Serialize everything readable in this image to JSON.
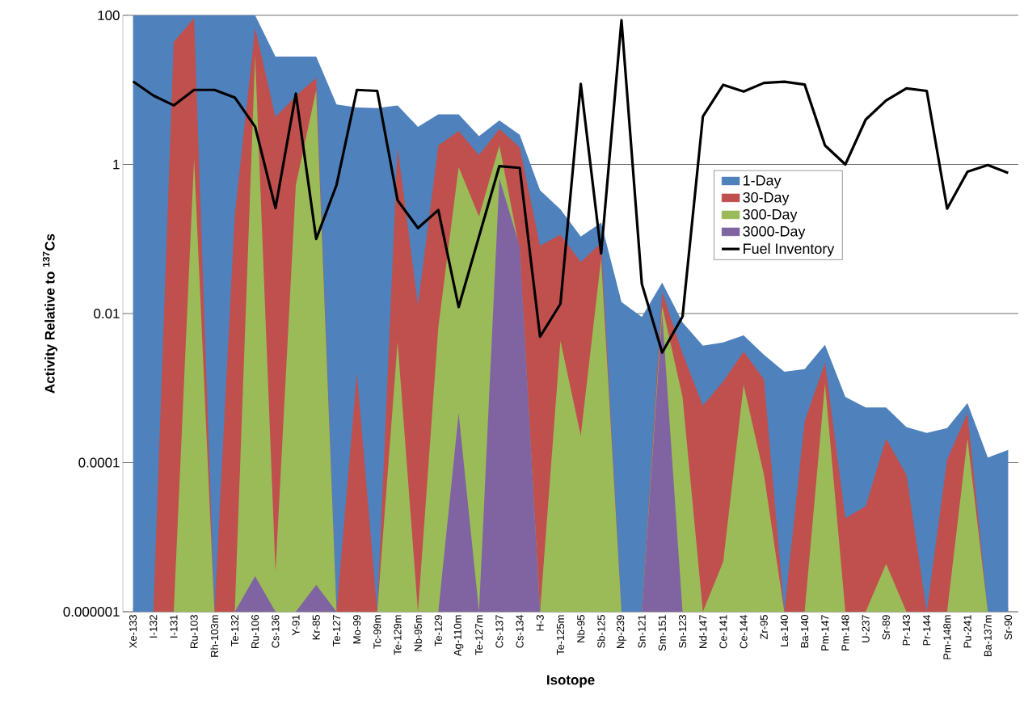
{
  "chart_data": {
    "type": "area",
    "xlabel": "Isotope",
    "ylabel": "Activity Relative to $^{137}$Cs",
    "log": "y",
    "grid": "y",
    "legend": "right",
    "categories": [
      "Xe-133",
      "I-132",
      "I-131",
      "Ru-103",
      "Rh-103m",
      "Te-132",
      "Ru-106",
      "Cs-136",
      "Y-91",
      "Kr-85",
      "Te-127",
      "Mo-99",
      "Tc-99m",
      "Te-129m",
      "Nb-95m",
      "Te-129",
      "Ag-110m",
      "Te-127m",
      "Cs-137",
      "Cs-134",
      "H-3",
      "Te-125m",
      "Nb-95",
      "Sb-125",
      "Np-239",
      "Sn-121",
      "Sm-151",
      "Sn-123",
      "Nd-147",
      "Ce-141",
      "Ce-144",
      "Zr-95",
      "La-140",
      "Ba-140",
      "Pm-147",
      "Pm-148",
      "U-237",
      "Sr-89",
      "Pr-143",
      "Pr-144",
      "Pm-148m",
      "Pu-241",
      "Ba-137m",
      "Sr-90"
    ],
    "ylim": [
      1e-06,
      100
    ],
    "yticks": [
      {
        "value": 1e-06,
        "label": "0.000001"
      },
      {
        "value": 0.0001,
        "label": "0.0001"
      },
      {
        "value": 0.01,
        "label": "0.01"
      },
      {
        "value": 1,
        "label": "1"
      },
      {
        "value": 100,
        "label": "100"
      }
    ],
    "series": [
      {
        "name": "1-Day",
        "color": "#4f81bd",
        "values": [
          100,
          100,
          100,
          100,
          100,
          100,
          100,
          28,
          28,
          28,
          6.4,
          5.8,
          5.7,
          6.2,
          3.2,
          4.7,
          4.7,
          2.4,
          3.9,
          2.5,
          0.45,
          0.25,
          0.108,
          0.166,
          0.0143,
          0.009,
          0.026,
          0.0076,
          0.0037,
          0.0041,
          0.0051,
          0.0028,
          0.00166,
          0.0018,
          0.0038,
          0.00076,
          0.00055,
          0.00055,
          0.0003,
          0.00025,
          0.00029,
          0.00063,
          0.000117,
          0.000148
        ]
      },
      {
        "name": "30-Day",
        "color": "#c0504d",
        "values": [
          1e-06,
          1e-06,
          44,
          92,
          1e-06,
          0.21,
          68,
          4.3,
          8.3,
          14.5,
          1e-06,
          0.0016,
          1e-06,
          1.7,
          0.013,
          1.8,
          2.8,
          1.33,
          3.0,
          1.7,
          0.081,
          0.115,
          0.049,
          0.089,
          1e-06,
          1e-06,
          0.0195,
          0.0029,
          0.00058,
          0.00123,
          0.0031,
          0.00131,
          1e-06,
          0.00036,
          0.0022,
          1.8e-05,
          2.6e-05,
          0.00021,
          6.9e-05,
          1e-06,
          0.00011,
          0.00046,
          1e-06,
          1e-06
        ]
      },
      {
        "name": "300-Day",
        "color": "#9bbb59",
        "values": [
          1e-06,
          1e-06,
          1e-06,
          1.2,
          1e-06,
          1e-06,
          29,
          3.4e-06,
          0.53,
          10,
          1e-06,
          1e-06,
          1e-06,
          0.0042,
          1e-06,
          0.0065,
          0.92,
          0.2,
          1.8,
          0.071,
          1e-06,
          0.0043,
          0.00023,
          0.055,
          1e-06,
          1e-06,
          0.0126,
          0.00076,
          1e-06,
          4.7e-06,
          0.0011,
          6.9e-05,
          1e-06,
          1e-06,
          0.00115,
          1e-06,
          1e-06,
          4.4e-06,
          1e-06,
          1e-06,
          1e-06,
          0.00021,
          1e-06,
          1e-06
        ]
      },
      {
        "name": "3000-Day",
        "color": "#8064a2",
        "values": [
          1e-06,
          1e-06,
          1e-06,
          1e-06,
          1e-06,
          1e-06,
          3e-06,
          1e-06,
          1e-06,
          2.3e-06,
          1e-06,
          1e-06,
          1e-06,
          1e-06,
          1e-06,
          1e-06,
          0.00046,
          1e-06,
          0.65,
          0.08,
          1e-06,
          1e-06,
          1e-06,
          1e-06,
          1e-06,
          1e-06,
          0.01,
          1e-06,
          1e-06,
          1e-06,
          1e-06,
          1e-06,
          1e-06,
          1e-06,
          1e-06,
          1e-06,
          1e-06,
          1e-06,
          1e-06,
          1e-06,
          1e-06,
          1e-06,
          1e-06,
          1e-06
        ]
      },
      {
        "name": "Fuel Inventory",
        "type": "line",
        "color": "#000000",
        "values": [
          13,
          8.4,
          6.2,
          10,
          10,
          7.9,
          3.2,
          0.26,
          8.9,
          0.1,
          0.53,
          10,
          9.7,
          0.33,
          0.14,
          0.245,
          0.0122,
          0.108,
          0.95,
          0.9,
          0.0049,
          0.0135,
          12,
          0.064,
          86,
          0.025,
          0.003,
          0.0091,
          4.4,
          11.7,
          9.5,
          12.4,
          12.9,
          11.8,
          1.8,
          1.0,
          4.0,
          7.2,
          10.5,
          9.7,
          0.255,
          0.8,
          0.98,
          0.77
        ]
      }
    ]
  }
}
